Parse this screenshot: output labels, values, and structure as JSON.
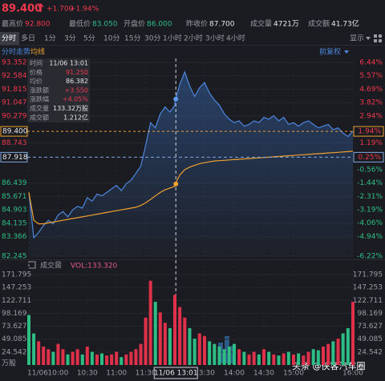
{
  "header": {
    "change": "+1.700",
    "change_pct": "+1.94%",
    "stats": [
      {
        "label": "最高价",
        "value": "92.800",
        "color": "#f0384f"
      },
      {
        "label": "最低价",
        "value": "83.050",
        "color": "#2fbf86"
      },
      {
        "label": "开盘价",
        "value": "86.000",
        "color": "#2fbf86"
      },
      {
        "label": "昨收价",
        "value": "87.700",
        "color": "#e6e6e6"
      },
      {
        "label": "成交量",
        "value": "4721万",
        "color": "#e6e6e6"
      },
      {
        "label": "成交额",
        "value": "41.73亿",
        "color": "#e6e6e6"
      }
    ]
  },
  "tabs": [
    "分时",
    "多日",
    "1分",
    "3分",
    "5分",
    "10分",
    "15分",
    "30分",
    "1小时",
    "2小时",
    "3小时",
    "4小时"
  ],
  "display_menu": "显示",
  "watermark": "头条 @侠客汽车圈",
  "chart_data": [
    {
      "type": "line",
      "adjust_menu": "前复权",
      "x": [
        "09:30",
        "09:35",
        "09:40",
        "09:45",
        "09:50",
        "09:55",
        "10:00",
        "10:05",
        "10:10",
        "10:15",
        "10:20",
        "10:25",
        "10:30",
        "10:35",
        "10:40",
        "10:45",
        "10:50",
        "10:55",
        "11:00",
        "11:05",
        "11:10",
        "11:15",
        "11:20",
        "11:25",
        "11:30",
        "11:35",
        "11:40",
        "11:45",
        "11:50",
        "11:55",
        "12:00",
        "13:00",
        "13:05",
        "13:10",
        "13:15",
        "13:20",
        "13:25",
        "13:30",
        "13:35",
        "13:40",
        "13:45",
        "13:50",
        "13:55",
        "14:00",
        "14:05",
        "14:10",
        "14:15",
        "14:20",
        "14:25",
        "14:30",
        "14:35",
        "14:40",
        "14:45",
        "14:50",
        "14:55",
        "15:00",
        "15:05",
        "15:10",
        "15:15",
        "15:20",
        "15:25",
        "15:30",
        "15:35",
        "15:40",
        "15:45",
        "15:50",
        "15:55",
        "16:00"
      ],
      "series": [
        {
          "name": "分时走势",
          "color": "#4d86dd",
          "values": [
            85.9,
            83.3,
            83.6,
            84.0,
            84.3,
            84.1,
            84.6,
            84.8,
            84.5,
            84.9,
            85.1,
            85.0,
            85.6,
            85.4,
            85.8,
            85.7,
            85.9,
            86.1,
            86.3,
            86.0,
            86.4,
            86.6,
            87.0,
            87.4,
            88.6,
            89.9,
            89.6,
            90.4,
            90.8,
            90.5,
            90.9,
            91.1,
            92.1,
            92.8,
            92.0,
            91.4,
            91.9,
            92.2,
            91.6,
            91.2,
            90.9,
            90.4,
            90.1,
            89.9,
            90.0,
            89.7,
            89.8,
            90.0,
            89.9,
            90.2,
            90.1,
            90.3,
            90.0,
            90.2,
            89.8,
            89.9,
            89.7,
            89.9,
            90.0,
            89.8,
            89.6,
            89.7,
            89.8,
            89.5,
            89.6,
            89.3,
            89.1,
            89.4
          ]
        },
        {
          "name": "均线",
          "color": "#f0a030",
          "values": [
            85.9,
            84.3,
            84.1,
            84.1,
            84.15,
            84.2,
            84.25,
            84.3,
            84.35,
            84.4,
            84.45,
            84.5,
            84.55,
            84.6,
            84.65,
            84.7,
            84.75,
            84.8,
            84.85,
            84.9,
            84.95,
            85.0,
            85.05,
            85.15,
            85.3,
            85.5,
            85.7,
            85.9,
            86.05,
            86.15,
            86.25,
            86.35,
            86.9,
            87.2,
            87.35,
            87.45,
            87.55,
            87.6,
            87.65,
            87.7,
            87.72,
            87.74,
            87.76,
            87.78,
            87.8,
            87.82,
            87.84,
            87.86,
            87.88,
            87.9,
            87.92,
            87.94,
            87.96,
            87.98,
            88.0,
            88.02,
            88.04,
            88.06,
            88.08,
            88.1,
            88.12,
            88.14,
            88.16,
            88.18,
            88.2,
            88.22,
            88.24,
            88.26
          ]
        }
      ],
      "xticks": [
        {
          "value": "09:30",
          "label": "11/06"
        },
        "10:00",
        "10:30",
        "11:00",
        "11:30",
        "13:30",
        "14:00",
        "14:30",
        "15:00",
        "16:00"
      ],
      "ylim": [
        82.245,
        93.352
      ],
      "yticks": [
        93.352,
        92.584,
        91.815,
        91.047,
        90.279,
        88.743,
        86.439,
        85.671,
        84.903,
        84.135,
        83.366,
        82.245
      ],
      "y2lim": [
        -6.22,
        6.44
      ],
      "y2ticks": [
        {
          "value": 6.44,
          "label": "6.44%"
        },
        {
          "value": 5.57,
          "label": "5.57%"
        },
        {
          "value": 4.69,
          "label": "4.69%"
        },
        {
          "value": 3.82,
          "label": "3.82%"
        },
        {
          "value": 2.94,
          "label": "2.94%"
        },
        {
          "value": 1.19,
          "label": "1.19%"
        },
        {
          "value": -0.56,
          "label": "-0.56%"
        },
        {
          "value": -1.44,
          "label": "-1.44%"
        },
        {
          "value": -2.31,
          "label": "-2.31%"
        },
        {
          "value": -3.19,
          "label": "-3.19%"
        },
        {
          "value": -4.06,
          "label": "-4.06%"
        },
        {
          "value": -4.94,
          "label": "-4.94%"
        },
        {
          "value": -6.22,
          "label": "-6.22%"
        }
      ],
      "current_price": {
        "value": 89.4,
        "label": "89.400",
        "pct": {
          "value": 1.94,
          "label": "1.94%"
        }
      },
      "crosshair": {
        "x": "13:01",
        "level": 87.918,
        "level_pct": {
          "value": 0.25,
          "label": "0.25%"
        }
      },
      "tooltip": [
        {
          "label": "时间",
          "value": "11/06 13:01"
        },
        {
          "label": "价格",
          "value": 91.25,
          "value_label": "91.250"
        },
        {
          "label": "均价",
          "value": 86.382
        },
        {
          "label": "涨跌额",
          "value": "+3.550"
        },
        {
          "label": "涨跌幅",
          "value": "+4.05%"
        },
        {
          "label": "成交量",
          "value": "133.32万股"
        },
        {
          "label": "成交额",
          "value": "1.212亿"
        }
      ],
      "grid": true
    },
    {
      "type": "bar",
      "title": "成交量",
      "vol_label": "VOL:133.320",
      "unit": "万股",
      "up_color": "#e0314b",
      "down_color": "#2dbd85",
      "values": [
        95,
        60,
        45,
        35,
        30,
        25,
        40,
        30,
        20,
        25,
        30,
        20,
        35,
        25,
        20,
        22,
        18,
        20,
        25,
        15,
        20,
        25,
        30,
        40,
        90,
        160,
        120,
        100,
        80,
        70,
        60,
        133.32,
        110,
        90,
        70,
        50,
        60,
        55,
        45,
        40,
        35,
        30,
        35,
        40,
        30,
        25,
        20,
        25,
        20,
        30,
        25,
        20,
        18,
        22,
        25,
        20,
        22,
        18,
        25,
        30,
        28,
        35,
        40,
        45,
        50,
        60,
        70,
        120
      ],
      "ylim": [
        0,
        171.795
      ],
      "yticks": [
        24.542,
        49.085,
        73.627,
        98.169,
        122.711,
        147.253,
        171.795
      ]
    }
  ]
}
